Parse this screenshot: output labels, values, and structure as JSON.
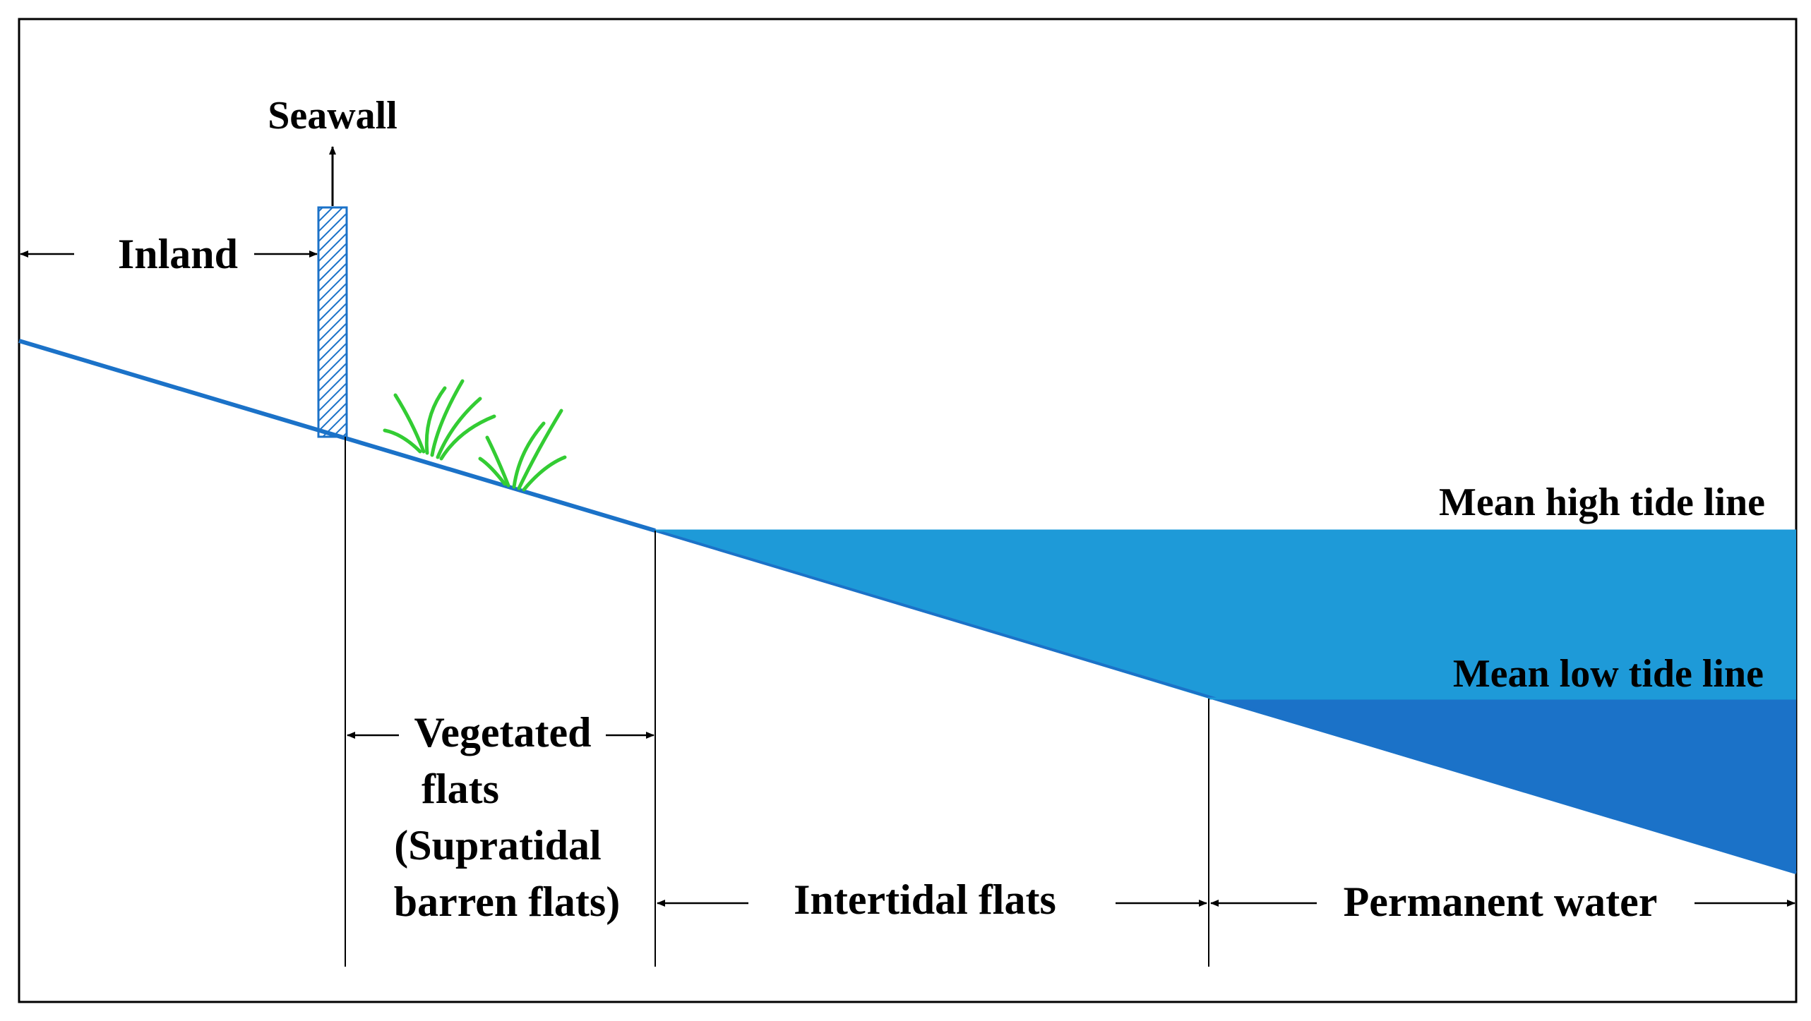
{
  "labels": {
    "seawall": "Seawall",
    "inland": "Inland",
    "mean_high_tide": "Mean high tide line",
    "mean_low_tide": "Mean low tide line",
    "vegetated_line1": "Vegetated",
    "vegetated_line2": "flats",
    "vegetated_line3": "(Supratidal",
    "vegetated_line4": "barren flats)",
    "intertidal": "Intertidal flats",
    "permanent_water": "Permanent water"
  },
  "colors": {
    "high_tide_water": "#1E9AD8",
    "low_tide_water": "#1B72C8",
    "shore_line": "#1B72C8",
    "seawall_hatch": "#1B72C8",
    "grass": "#33CC33",
    "frame": "#000000"
  }
}
